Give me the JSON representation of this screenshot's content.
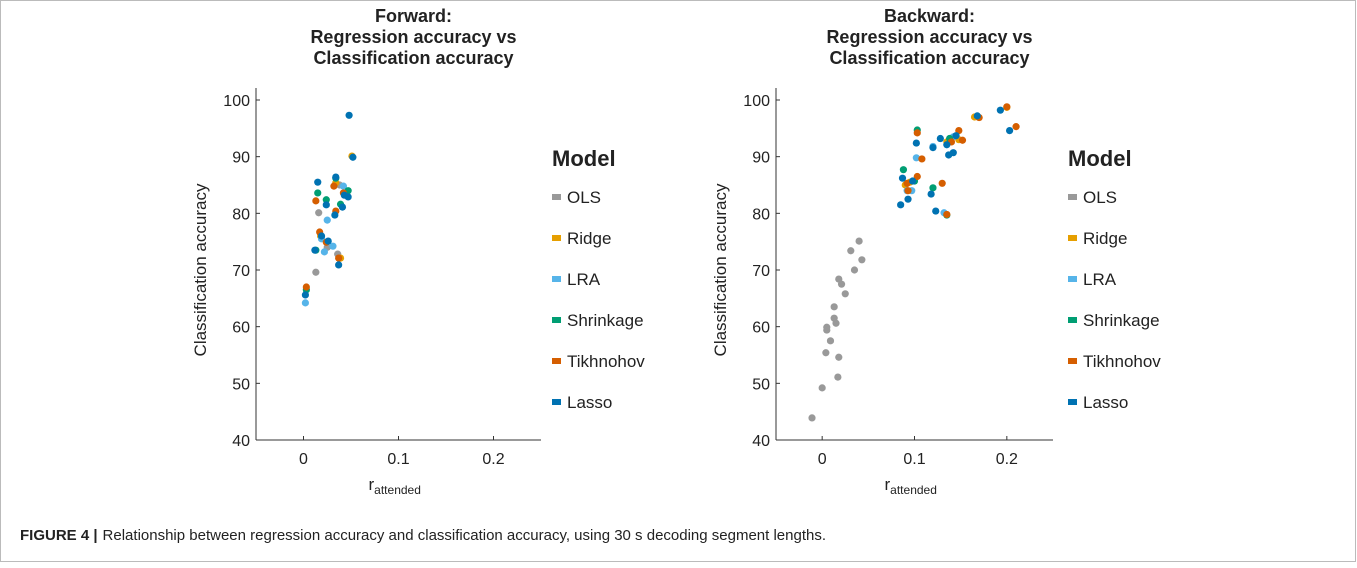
{
  "chart_data": [
    {
      "type": "scatter",
      "title": [
        "Forward:",
        "Regression accuracy vs",
        "Classification accuracy"
      ],
      "xlabel": "r",
      "xlabel_sub": "attended",
      "ylabel": "Classification accuracy",
      "xlim": [
        -0.05,
        0.25
      ],
      "ylim": [
        40,
        100
      ],
      "xticks": [
        0,
        0.1,
        0.2
      ],
      "yticks": [
        40,
        50,
        60,
        70,
        80,
        90,
        100
      ],
      "legend_title": "Model",
      "series": [
        {
          "name": "OLS",
          "color": "#999999",
          "x": [
            0.016,
            0.013,
            0.036,
            0.038,
            0.025
          ],
          "values": [
            80.1,
            69.6,
            72.8,
            85.0,
            74.0
          ]
        },
        {
          "name": "Ridge",
          "color": "#e69f00",
          "x": [
            0.018,
            0.034,
            0.051,
            0.039
          ],
          "values": [
            76.0,
            85.4,
            90.1,
            72.1
          ]
        },
        {
          "name": "LRA",
          "color": "#56b4e9",
          "x": [
            0.002,
            0.019,
            0.022,
            0.025,
            0.031,
            0.042
          ],
          "values": [
            64.2,
            75.5,
            73.2,
            78.8,
            74.2,
            84.8
          ]
        },
        {
          "name": "Shrinkage",
          "color": "#009e73",
          "x": [
            0.015,
            0.024,
            0.047,
            0.013,
            0.003,
            0.039,
            0.034
          ],
          "values": [
            83.6,
            82.4,
            84.0,
            73.5,
            66.5,
            81.6,
            86.2
          ]
        },
        {
          "name": "Tikhnohov",
          "color": "#d55e00",
          "x": [
            0.013,
            0.034,
            0.032,
            0.042,
            0.037,
            0.003,
            0.017,
            0.024
          ],
          "values": [
            82.2,
            80.4,
            84.8,
            83.6,
            72.1,
            67.0,
            76.7,
            74.9
          ]
        },
        {
          "name": "Lasso",
          "color": "#0072b2",
          "x": [
            0.048,
            0.052,
            0.015,
            0.034,
            0.024,
            0.043,
            0.041,
            0.047,
            0.019,
            0.033,
            0.037,
            0.002,
            0.012,
            0.026
          ],
          "values": [
            97.3,
            89.9,
            85.5,
            86.4,
            81.5,
            83.2,
            81.1,
            82.9,
            76.0,
            79.7,
            70.9,
            65.6,
            73.5,
            75.1
          ]
        }
      ]
    },
    {
      "type": "scatter",
      "title": [
        "Backward:",
        "Regression accuracy vs",
        "Classification accuracy"
      ],
      "xlabel": "r",
      "xlabel_sub": "attended",
      "ylabel": "Classification accuracy",
      "xlim": [
        -0.05,
        0.25
      ],
      "ylim": [
        40,
        100
      ],
      "xticks": [
        0,
        0.1,
        0.2
      ],
      "yticks": [
        40,
        50,
        60,
        70,
        80,
        90,
        100
      ],
      "legend_title": "Model",
      "series": [
        {
          "name": "OLS",
          "color": "#999999",
          "x": [
            -0.011,
            0,
            0.017,
            0.018,
            0.004,
            0.009,
            0.005,
            0.005,
            0.015,
            0.013,
            0.013,
            0.025,
            0.021,
            0.018,
            0.035,
            0.043,
            0.031,
            0.04
          ],
          "values": [
            43.9,
            49.2,
            51.1,
            54.6,
            55.4,
            57.5,
            59.4,
            59.9,
            60.6,
            61.5,
            63.5,
            65.8,
            67.5,
            68.4,
            70.0,
            71.8,
            73.4,
            75.1
          ]
        },
        {
          "name": "Ridge",
          "color": "#e69f00",
          "x": [
            0.095,
            0.135,
            0.148,
            0.165,
            0.2,
            0.09
          ],
          "values": [
            85.5,
            92.6,
            93.0,
            97.0,
            98.7,
            85.0
          ]
        },
        {
          "name": "LRA",
          "color": "#56b4e9",
          "x": [
            0.092,
            0.102,
            0.097,
            0.132,
            0.12,
            0.142
          ],
          "values": [
            84.0,
            89.8,
            84.0,
            80.1,
            91.8,
            93.5
          ]
        },
        {
          "name": "Shrinkage",
          "color": "#009e73",
          "x": [
            0.088,
            0.103,
            0.12,
            0.135,
            0.138,
            0.1
          ],
          "values": [
            87.7,
            94.7,
            84.5,
            79.7,
            93.2,
            85.7
          ]
        },
        {
          "name": "Tikhnohov",
          "color": "#d55e00",
          "x": [
            0.093,
            0.103,
            0.108,
            0.103,
            0.13,
            0.135,
            0.14,
            0.148,
            0.152,
            0.17,
            0.2,
            0.21,
            0.092
          ],
          "values": [
            84.0,
            86.5,
            89.6,
            94.2,
            85.3,
            79.8,
            92.6,
            94.6,
            92.9,
            96.9,
            98.8,
            95.3,
            85.3
          ]
        },
        {
          "name": "Lasso",
          "color": "#0072b2",
          "x": [
            0.085,
            0.093,
            0.087,
            0.098,
            0.102,
            0.12,
            0.123,
            0.118,
            0.128,
            0.137,
            0.145,
            0.168,
            0.193,
            0.203,
            0.135,
            0.142
          ],
          "values": [
            81.5,
            82.5,
            86.2,
            85.7,
            92.4,
            91.6,
            80.4,
            83.4,
            93.2,
            90.3,
            93.7,
            97.2,
            98.2,
            94.6,
            92.1,
            90.7
          ]
        }
      ]
    }
  ],
  "caption": {
    "label": "FIGURE 4 |",
    "text": "Relationship between regression accuracy and classification accuracy, using 30 s decoding segment lengths."
  }
}
